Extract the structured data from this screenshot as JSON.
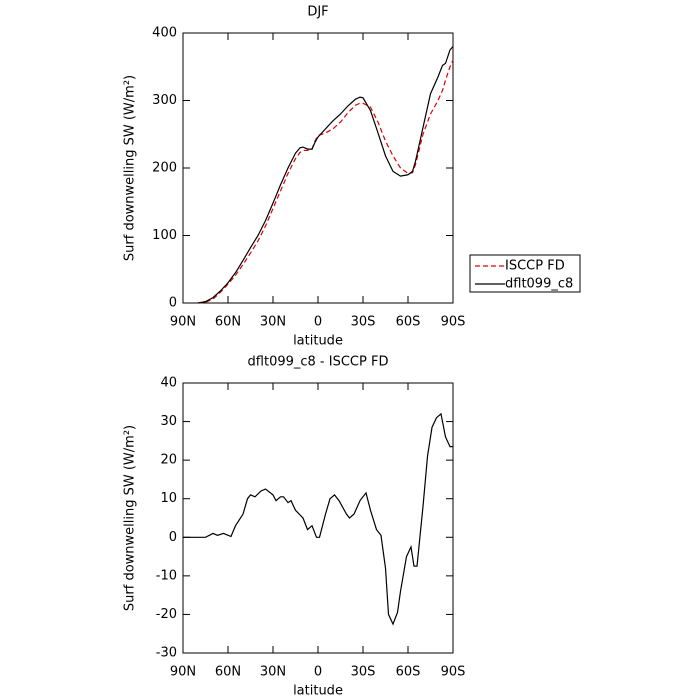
{
  "chart_data": [
    {
      "type": "line",
      "title": "DJF",
      "xlabel": "latitude",
      "ylabel": "Surf downwelling SW (W/m²)",
      "xlim": [
        90,
        -90
      ],
      "ylim": [
        0,
        400
      ],
      "xticks": [
        {
          "value": 90,
          "label": "90N"
        },
        {
          "value": 60,
          "label": "60N"
        },
        {
          "value": 30,
          "label": "30N"
        },
        0,
        {
          "value": -30,
          "label": "30S"
        },
        {
          "value": -60,
          "label": "60S"
        },
        {
          "value": -90,
          "label": "90S"
        }
      ],
      "yticks": [
        0,
        100,
        200,
        300,
        400
      ],
      "legend": "right",
      "x": [
        80,
        75,
        70,
        65,
        60,
        55,
        50,
        45,
        40,
        35,
        30,
        25,
        20,
        15,
        12,
        10,
        7,
        4,
        2,
        0,
        -5,
        -10,
        -15,
        -20,
        -25,
        -28,
        -30,
        -35,
        -40,
        -45,
        -50,
        -55,
        -60,
        -63,
        -65,
        -70,
        -75,
        -80,
        -83,
        -85,
        -88,
        -90
      ],
      "series": [
        {
          "name": "ISCCP FD",
          "color": "#e00000",
          "dash": true,
          "values": [
            0,
            1,
            6,
            16,
            28,
            41,
            57,
            74,
            92,
            114,
            140,
            166,
            192,
            214,
            223,
            226,
            226,
            228,
            240,
            248,
            252,
            258,
            268,
            282,
            293,
            296,
            296,
            290,
            268,
            240,
            218,
            200,
            192,
            193,
            205,
            250,
            280,
            300,
            315,
            330,
            350,
            360
          ]
        },
        {
          "name": "dflt099_c8",
          "color": "#000000",
          "dash": false,
          "values": [
            0,
            2,
            8,
            18,
            30,
            45,
            63,
            82,
            100,
            122,
            148,
            175,
            200,
            222,
            230,
            231,
            228,
            228,
            238,
            246,
            258,
            270,
            280,
            292,
            302,
            305,
            304,
            285,
            252,
            218,
            195,
            188,
            190,
            195,
            210,
            260,
            310,
            335,
            352,
            355,
            375,
            380
          ]
        }
      ]
    },
    {
      "type": "line",
      "title": "dflt099_c8 - ISCCP FD",
      "xlabel": "latitude",
      "ylabel": "Surf downwelling SW (W/m²)",
      "xlim": [
        90,
        -90
      ],
      "ylim": [
        -30,
        40
      ],
      "xticks": [
        {
          "value": 90,
          "label": "90N"
        },
        {
          "value": 60,
          "label": "60N"
        },
        {
          "value": 30,
          "label": "30N"
        },
        0,
        {
          "value": -30,
          "label": "30S"
        },
        {
          "value": -60,
          "label": "60S"
        },
        {
          "value": -90,
          "label": "90S"
        }
      ],
      "yticks": [
        -30,
        -20,
        -10,
        0,
        10,
        20,
        30,
        40
      ],
      "x": [
        90,
        80,
        75,
        70,
        67,
        63,
        58,
        55,
        50,
        47,
        45,
        42,
        38,
        35,
        30,
        28,
        25,
        23,
        20,
        18,
        15,
        10,
        7,
        4,
        1,
        -1,
        -5,
        -8,
        -11,
        -14,
        -19,
        -21,
        -24,
        -28,
        -32,
        -35,
        -39,
        -42,
        -45,
        -47,
        -50,
        -53,
        -55,
        -59,
        -62,
        -64,
        -66,
        -70,
        -73,
        -76,
        -79,
        -82,
        -85,
        -88,
        -90
      ],
      "series": [
        {
          "name": "dflt099_c8",
          "color": "#000000",
          "dash": false,
          "values": [
            0,
            0,
            0,
            1,
            0.5,
            1,
            0.2,
            3,
            6,
            10,
            11,
            10.5,
            12,
            12.5,
            11,
            9.5,
            10.5,
            10.5,
            9,
            9.5,
            7,
            5,
            2,
            3,
            0,
            0,
            6,
            10,
            11,
            9.5,
            6,
            5,
            6,
            9.5,
            11.5,
            7,
            2,
            0.5,
            -8,
            -20,
            -22.5,
            -19.5,
            -14,
            -5,
            -2.5,
            -7.5,
            -7.5,
            8,
            21,
            28.5,
            31,
            32,
            26,
            23.5,
            23.5
          ]
        }
      ]
    }
  ]
}
